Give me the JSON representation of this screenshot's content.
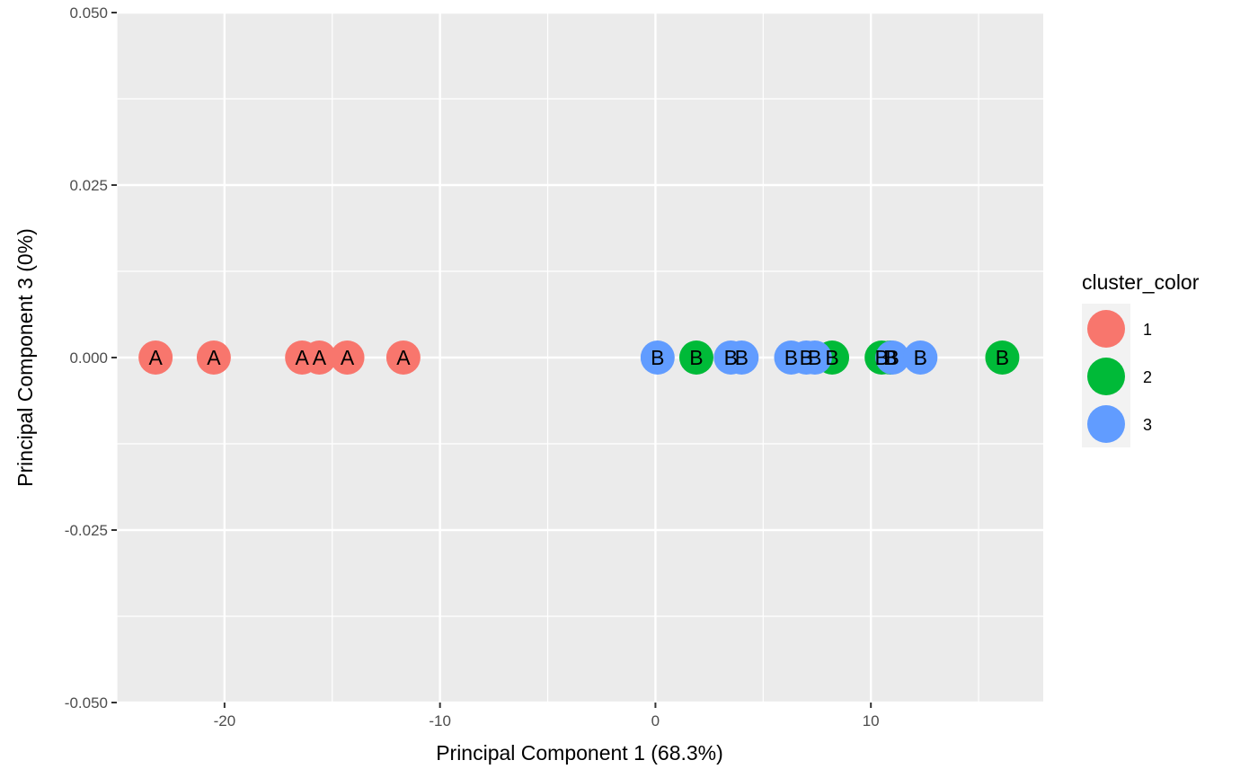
{
  "chart_data": {
    "type": "scatter",
    "xlabel": "Principal Component 1 (68.3%)",
    "ylabel": "Principal Component 3 (0%)",
    "xlim": [
      -25,
      18
    ],
    "ylim": [
      -0.05,
      0.05
    ],
    "x_ticks": [
      -20,
      -10,
      0,
      10
    ],
    "x_tick_labels": [
      "-20",
      "-10",
      "0",
      "10"
    ],
    "y_ticks": [
      0.05,
      0.025,
      0.0,
      -0.025,
      -0.05
    ],
    "y_tick_labels": [
      "0.050",
      "0.025",
      "0.000",
      "-0.025",
      "-0.050"
    ],
    "grid": true,
    "legend": {
      "title": "cluster_color",
      "position": "right",
      "entries": [
        {
          "label": "1",
          "color": "#F8766D"
        },
        {
          "label": "2",
          "color": "#00BA38"
        },
        {
          "label": "3",
          "color": "#619CFF"
        }
      ]
    },
    "series": [
      {
        "name": "1",
        "color": "#F8766D",
        "points": [
          {
            "x": -23.2,
            "y": 0.0,
            "label": "A"
          },
          {
            "x": -20.5,
            "y": 0.0,
            "label": "A"
          },
          {
            "x": -16.4,
            "y": 0.0,
            "label": "A"
          },
          {
            "x": -15.6,
            "y": 0.0,
            "label": "A"
          },
          {
            "x": -14.3,
            "y": 0.0,
            "label": "A"
          },
          {
            "x": -11.7,
            "y": 0.0,
            "label": "A"
          }
        ]
      },
      {
        "name": "2",
        "color": "#00BA38",
        "points": [
          {
            "x": 1.9,
            "y": 0.0,
            "label": "B"
          },
          {
            "x": 8.2,
            "y": 0.0,
            "label": "B"
          },
          {
            "x": 10.5,
            "y": 0.0,
            "label": "B"
          },
          {
            "x": 10.9,
            "y": 0.0,
            "label": "B"
          },
          {
            "x": 16.1,
            "y": 0.0,
            "label": "B"
          }
        ]
      },
      {
        "name": "3",
        "color": "#619CFF",
        "points": [
          {
            "x": 0.1,
            "y": 0.0,
            "label": "B"
          },
          {
            "x": 3.5,
            "y": 0.0,
            "label": "B"
          },
          {
            "x": 4.0,
            "y": 0.0,
            "label": "B"
          },
          {
            "x": 6.3,
            "y": 0.0,
            "label": "B"
          },
          {
            "x": 7.0,
            "y": 0.0,
            "label": "B"
          },
          {
            "x": 7.4,
            "y": 0.0,
            "label": "B"
          },
          {
            "x": 11.0,
            "y": 0.0,
            "label": "B"
          },
          {
            "x": 12.3,
            "y": 0.0,
            "label": "B"
          }
        ]
      }
    ]
  }
}
